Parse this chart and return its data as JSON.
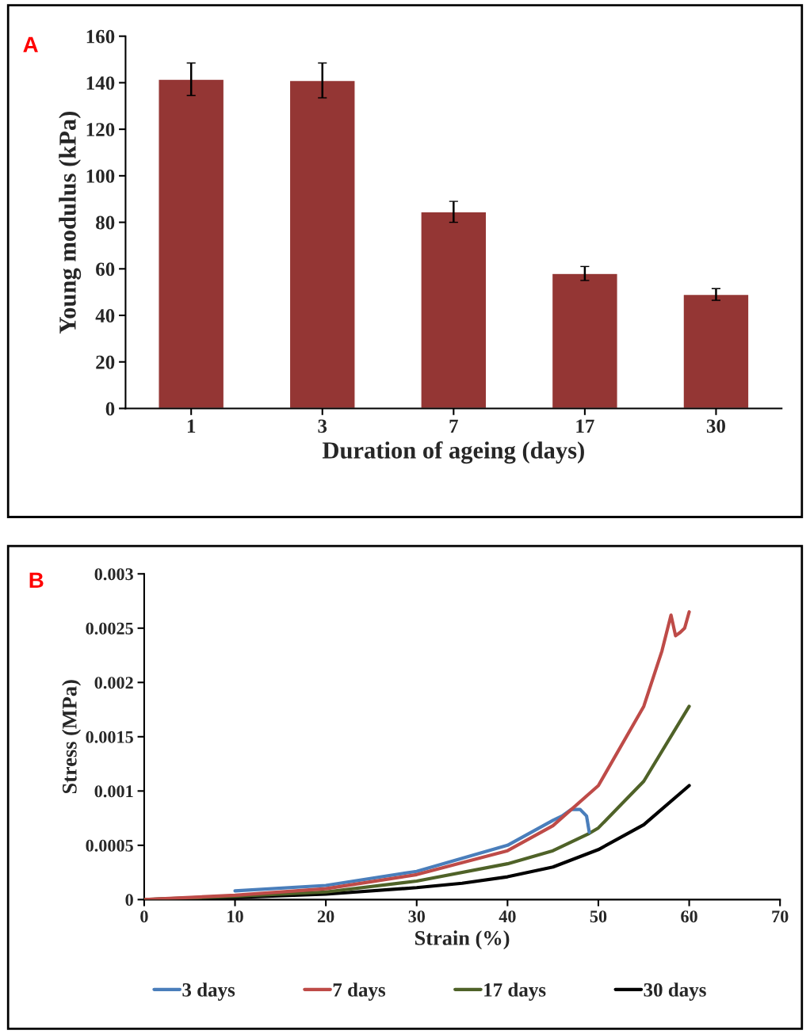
{
  "chart_data": [
    {
      "type": "bar",
      "annotations": [
        "A"
      ],
      "xlabel": "Duration of ageing (days)",
      "ylabel": "Young modulus (kPa)",
      "categories": [
        "1",
        "3",
        "7",
        "17",
        "30"
      ],
      "values": [
        141.5,
        141,
        84.5,
        58,
        49
      ],
      "errors": [
        7,
        7.5,
        4.5,
        3,
        2.5
      ],
      "color": "#943634",
      "ylim": [
        0,
        160
      ],
      "yticks": [
        0,
        20,
        40,
        60,
        80,
        100,
        120,
        140,
        160
      ],
      "grid": false
    },
    {
      "type": "line",
      "annotations": [
        "B"
      ],
      "xlabel": "Strain (%)",
      "ylabel": "Stress (MPa)",
      "legend": "bottom",
      "grid": false,
      "xlim": [
        0,
        70
      ],
      "xticks": [
        0,
        10,
        20,
        30,
        40,
        50,
        60,
        70
      ],
      "ylim": [
        0,
        0.003
      ],
      "yticks": [
        0,
        0.0005,
        0.001,
        0.0015,
        0.002,
        0.0025,
        0.003
      ],
      "series": [
        {
          "name": "3 days",
          "color": "#4a7ebb",
          "x": [
            10,
            20,
            30,
            40,
            45,
            46,
            47,
            48,
            48.7,
            49
          ],
          "values": [
            8e-05,
            0.00013,
            0.00026,
            0.0005,
            0.00073,
            0.00077,
            0.00083,
            0.00083,
            0.00077,
            0.00062
          ]
        },
        {
          "name": "7 days",
          "color": "#be4b48",
          "x": [
            0,
            10,
            20,
            30,
            40,
            45,
            50,
            55,
            57,
            58,
            58.5,
            59,
            59.5,
            60
          ],
          "values": [
            0,
            4e-05,
            0.0001,
            0.00023,
            0.00045,
            0.00068,
            0.00105,
            0.00178,
            0.00229,
            0.00262,
            0.00243,
            0.00246,
            0.0025,
            0.00265
          ]
        },
        {
          "name": "17 days",
          "color": "#4f6228",
          "x": [
            0,
            10,
            20,
            30,
            40,
            45,
            49,
            50,
            55,
            60
          ],
          "values": [
            0,
            3e-05,
            7e-05,
            0.00017,
            0.00033,
            0.00045,
            0.00061,
            0.00066,
            0.00109,
            0.00178
          ]
        },
        {
          "name": "30 days",
          "color": "#000000",
          "x": [
            0,
            10,
            20,
            30,
            35,
            40,
            45,
            50,
            55,
            60
          ],
          "values": [
            0,
            2e-05,
            5e-05,
            0.00011,
            0.00015,
            0.00021,
            0.0003,
            0.00046,
            0.00069,
            0.00105
          ]
        }
      ]
    }
  ]
}
